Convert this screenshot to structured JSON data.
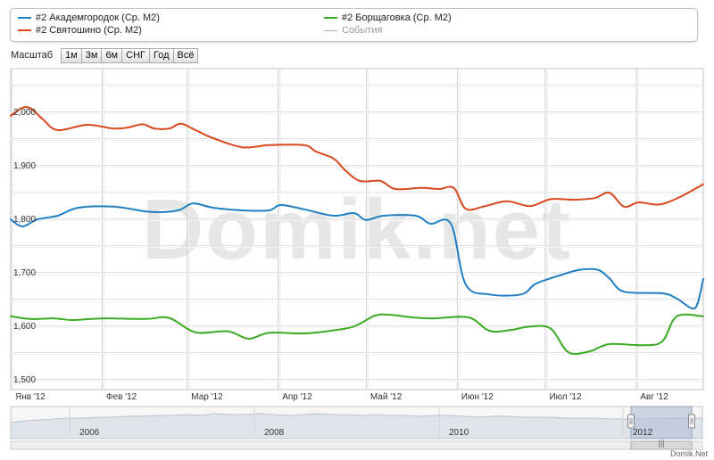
{
  "legend": {
    "items": [
      {
        "label": "#2 Академгородок (Ср. М2)",
        "color": "#1f7fc4"
      },
      {
        "label": "#2 Святошино (Ср. М2)",
        "color": "#d9471c"
      },
      {
        "label": "#2 Борщаговка (Ср. М2)",
        "color": "#3aab23"
      },
      {
        "label": "События",
        "color": "#aaaaaa"
      }
    ]
  },
  "zoom": {
    "label": "Масштаб",
    "buttons": [
      "1м",
      "3м",
      "6м",
      "СНГ",
      "Год",
      "Всё"
    ]
  },
  "watermark": "Domik.net",
  "credit": "Domik.Net",
  "navigator": {
    "years": [
      "2006",
      "2008",
      "2010",
      "2012"
    ],
    "handle_glyph": "|||"
  },
  "chart_data": {
    "type": "line",
    "title": "",
    "xlabel": "",
    "ylabel": "",
    "x_ticks": [
      "Янв '12",
      "Фев '12",
      "Мар '12",
      "Апр '12",
      "Май '12",
      "Июн '12",
      "Июл '12",
      "Авг '12"
    ],
    "y_ticks": [
      "1,500",
      "1,600",
      "1,700",
      "1,800",
      "1,900",
      "2,000"
    ],
    "ylim": [
      1480,
      2080
    ],
    "xlim": [
      "2012-01-01",
      "2012-08-24"
    ],
    "grid": true,
    "legend_position": "top",
    "series": [
      {
        "name": "#2 Академгородок (Ср. М2)",
        "color": "#1f7fc4",
        "points": [
          [
            "2012-01-01",
            1798
          ],
          [
            "2012-01-05",
            1785
          ],
          [
            "2012-01-10",
            1798
          ],
          [
            "2012-01-17",
            1805
          ],
          [
            "2012-01-24",
            1820
          ],
          [
            "2012-02-05",
            1822
          ],
          [
            "2012-02-18",
            1812
          ],
          [
            "2012-02-27",
            1815
          ],
          [
            "2012-03-03",
            1828
          ],
          [
            "2012-03-10",
            1820
          ],
          [
            "2012-03-20",
            1815
          ],
          [
            "2012-03-29",
            1815
          ],
          [
            "2012-04-02",
            1825
          ],
          [
            "2012-04-10",
            1817
          ],
          [
            "2012-04-20",
            1805
          ],
          [
            "2012-04-27",
            1810
          ],
          [
            "2012-05-01",
            1797
          ],
          [
            "2012-05-07",
            1805
          ],
          [
            "2012-05-18",
            1805
          ],
          [
            "2012-05-23",
            1790
          ],
          [
            "2012-05-30",
            1790
          ],
          [
            "2012-06-04",
            1677
          ],
          [
            "2012-06-12",
            1658
          ],
          [
            "2012-06-23",
            1658
          ],
          [
            "2012-06-28",
            1678
          ],
          [
            "2012-07-07",
            1695
          ],
          [
            "2012-07-13",
            1704
          ],
          [
            "2012-07-19",
            1704
          ],
          [
            "2012-07-23",
            1688
          ],
          [
            "2012-07-28",
            1663
          ],
          [
            "2012-08-10",
            1660
          ],
          [
            "2012-08-15",
            1650
          ],
          [
            "2012-08-20",
            1632
          ],
          [
            "2012-08-22",
            1640
          ],
          [
            "2012-08-24",
            1687
          ]
        ]
      },
      {
        "name": "#2 Святошино (Ср. М2)",
        "color": "#d9471c",
        "points": [
          [
            "2012-01-01",
            1992
          ],
          [
            "2012-01-05",
            2007
          ],
          [
            "2012-01-08",
            2005
          ],
          [
            "2012-01-12",
            1985
          ],
          [
            "2012-01-17",
            1965
          ],
          [
            "2012-01-27",
            1975
          ],
          [
            "2012-02-05",
            1968
          ],
          [
            "2012-02-10",
            1970
          ],
          [
            "2012-02-15",
            1976
          ],
          [
            "2012-02-19",
            1968
          ],
          [
            "2012-02-24",
            1968
          ],
          [
            "2012-02-28",
            1977
          ],
          [
            "2012-03-04",
            1965
          ],
          [
            "2012-03-10",
            1950
          ],
          [
            "2012-03-20",
            1933
          ],
          [
            "2012-03-29",
            1937
          ],
          [
            "2012-04-10",
            1937
          ],
          [
            "2012-04-14",
            1925
          ],
          [
            "2012-04-20",
            1912
          ],
          [
            "2012-04-24",
            1890
          ],
          [
            "2012-04-29",
            1870
          ],
          [
            "2012-05-06",
            1870
          ],
          [
            "2012-05-11",
            1855
          ],
          [
            "2012-05-20",
            1857
          ],
          [
            "2012-05-26",
            1855
          ],
          [
            "2012-05-31",
            1857
          ],
          [
            "2012-06-04",
            1818
          ],
          [
            "2012-06-10",
            1822
          ],
          [
            "2012-06-18",
            1832
          ],
          [
            "2012-06-26",
            1823
          ],
          [
            "2012-07-03",
            1836
          ],
          [
            "2012-07-11",
            1835
          ],
          [
            "2012-07-18",
            1838
          ],
          [
            "2012-07-23",
            1848
          ],
          [
            "2012-07-28",
            1822
          ],
          [
            "2012-08-02",
            1830
          ],
          [
            "2012-08-09",
            1826
          ],
          [
            "2012-08-16",
            1840
          ],
          [
            "2012-08-24",
            1864
          ]
        ]
      },
      {
        "name": "#2 Борщаговка (Ср. М2)",
        "color": "#3aab23",
        "points": [
          [
            "2012-01-01",
            1617
          ],
          [
            "2012-01-08",
            1612
          ],
          [
            "2012-01-16",
            1613
          ],
          [
            "2012-01-22",
            1610
          ],
          [
            "2012-02-01",
            1613
          ],
          [
            "2012-02-16",
            1612
          ],
          [
            "2012-02-24",
            1614
          ],
          [
            "2012-03-04",
            1587
          ],
          [
            "2012-03-15",
            1589
          ],
          [
            "2012-03-22",
            1575
          ],
          [
            "2012-03-29",
            1586
          ],
          [
            "2012-04-10",
            1585
          ],
          [
            "2012-04-19",
            1590
          ],
          [
            "2012-04-27",
            1598
          ],
          [
            "2012-05-04",
            1618
          ],
          [
            "2012-05-09",
            1620
          ],
          [
            "2012-05-17",
            1615
          ],
          [
            "2012-05-24",
            1613
          ],
          [
            "2012-06-05",
            1615
          ],
          [
            "2012-06-12",
            1590
          ],
          [
            "2012-06-19",
            1591
          ],
          [
            "2012-06-26",
            1598
          ],
          [
            "2012-07-03",
            1594
          ],
          [
            "2012-07-09",
            1550
          ],
          [
            "2012-07-16",
            1551
          ],
          [
            "2012-07-23",
            1565
          ],
          [
            "2012-08-03",
            1563
          ],
          [
            "2012-08-10",
            1570
          ],
          [
            "2012-08-15",
            1617
          ],
          [
            "2012-08-24",
            1617
          ]
        ]
      }
    ]
  }
}
